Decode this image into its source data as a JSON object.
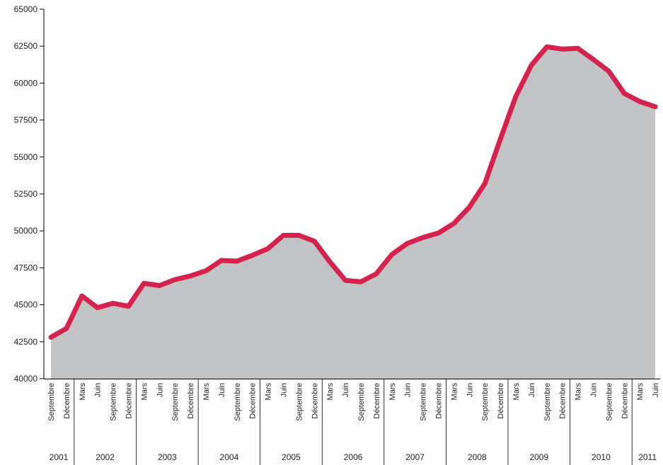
{
  "chart_data": {
    "type": "area",
    "title": "",
    "xlabel": "",
    "ylabel": "",
    "ylim": [
      40000,
      65000
    ],
    "y_ticks": [
      40000,
      42500,
      45000,
      47500,
      50000,
      52500,
      55000,
      57500,
      60000,
      62500,
      65000
    ],
    "grid": false,
    "colors": {
      "line": "#d4234e",
      "fill": "#c3c4c6",
      "axis": "#000000"
    },
    "x": [
      "Septembre 2001",
      "Décembre 2001",
      "Mars 2002",
      "Juin 2002",
      "Septembre 2002",
      "Décembre 2002",
      "Mars 2003",
      "Juin 2003",
      "Septembre 2003",
      "Décembre 2003",
      "Mars 2004",
      "Juin 2004",
      "Septembre 2004",
      "Décembre 2004",
      "Mars 2005",
      "Juin 2005",
      "Septembre 2005",
      "Décembre 2005",
      "Mars 2006",
      "Juin 2006",
      "Septembre 2006",
      "Décembre 2006",
      "Mars 2007",
      "Juin 2007",
      "Septembre 2007",
      "Décembre 2007",
      "Mars 2008",
      "Juin 2008",
      "Septembre 2008",
      "Décembre 2008",
      "Mars 2009",
      "Juin 2009",
      "Septembre 2009",
      "Décembre 2009",
      "Mars 2010",
      "Juin 2010",
      "Septembre 2010",
      "Décembre 2010",
      "Mars 2011",
      "Juin 2011"
    ],
    "quarter_labels": [
      "Septembre",
      "Décembre",
      "Mars",
      "Juin",
      "Septembre",
      "Décembre",
      "Mars",
      "Juin",
      "Septembre",
      "Décembre",
      "Mars",
      "Juin",
      "Septembre",
      "Décembre",
      "Mars",
      "Juin",
      "Septembre",
      "Décembre",
      "Mars",
      "Juin",
      "Septembre",
      "Décembre",
      "Mars",
      "Juin",
      "Septembre",
      "Décembre",
      "Mars",
      "Juin",
      "Septembre",
      "Décembre",
      "Mars",
      "Juin",
      "Septembre",
      "Décembre",
      "Mars",
      "Juin",
      "Septembre",
      "Décembre",
      "Mars",
      "Juin"
    ],
    "years": [
      {
        "label": "2001",
        "quarters": 2
      },
      {
        "label": "2002",
        "quarters": 4
      },
      {
        "label": "2003",
        "quarters": 4
      },
      {
        "label": "2004",
        "quarters": 4
      },
      {
        "label": "2005",
        "quarters": 4
      },
      {
        "label": "2006",
        "quarters": 4
      },
      {
        "label": "2007",
        "quarters": 4
      },
      {
        "label": "2008",
        "quarters": 4
      },
      {
        "label": "2009",
        "quarters": 4
      },
      {
        "label": "2010",
        "quarters": 4
      },
      {
        "label": "2011",
        "quarters": 2
      }
    ],
    "series": [
      {
        "values": [
          42800,
          43400,
          45600,
          44800,
          45100,
          44900,
          46450,
          46300,
          46700,
          46950,
          47300,
          48000,
          47950,
          48350,
          48800,
          49700,
          49700,
          49300,
          47900,
          46650,
          46550,
          47100,
          48400,
          49150,
          49550,
          49850,
          50500,
          51600,
          53200,
          56200,
          59100,
          61200,
          62450,
          62300,
          62350,
          61600,
          60800,
          59300,
          58750,
          58400
        ]
      }
    ]
  }
}
